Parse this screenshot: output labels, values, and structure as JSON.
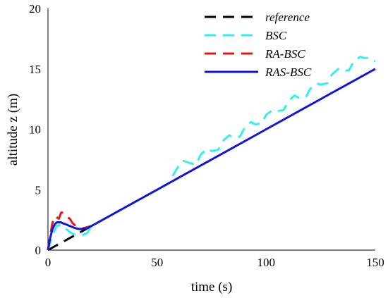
{
  "chart_data": {
    "type": "line",
    "xlabel": "time (s)",
    "ylabel": "altitude z (m)",
    "xlim": [
      0,
      150
    ],
    "ylim": [
      0,
      20
    ],
    "xticks": [
      "0",
      "50",
      "100",
      "150"
    ],
    "yticks": [
      "0",
      "5",
      "10",
      "15",
      "20"
    ],
    "grid": false,
    "legend_position": "top-right",
    "series": [
      {
        "name": "reference",
        "color": "#000000",
        "style": "dashed",
        "x": [
          0,
          20
        ],
        "y": [
          0,
          2
        ]
      },
      {
        "name": "BSC",
        "color": "#33f0f0",
        "style": "dashed",
        "x": [
          0,
          2,
          4,
          6,
          8,
          10,
          12,
          15,
          18,
          20,
          25,
          30,
          40,
          50,
          55,
          58,
          60,
          62,
          65,
          68,
          70,
          73,
          75,
          78,
          80,
          83,
          85,
          88,
          90,
          93,
          95,
          98,
          100,
          103,
          105,
          108,
          110,
          113,
          115,
          118,
          120,
          123,
          125,
          128,
          130,
          133,
          135,
          138,
          140,
          143,
          145,
          148,
          150
        ],
        "y": [
          0,
          1.2,
          2.0,
          2.1,
          1.8,
          1.5,
          1.3,
          1.2,
          1.4,
          2.0,
          2.5,
          3.0,
          4.0,
          5.0,
          5.5,
          6.4,
          7.0,
          7.4,
          7.2,
          7.1,
          7.9,
          8.4,
          8.2,
          8.3,
          9.0,
          9.5,
          9.3,
          9.4,
          10.1,
          10.6,
          10.4,
          10.5,
          11.2,
          11.6,
          11.5,
          11.6,
          12.3,
          12.8,
          12.6,
          12.6,
          13.3,
          13.8,
          13.7,
          13.8,
          14.5,
          15.0,
          14.8,
          14.9,
          15.6,
          16.0,
          15.9,
          15.9,
          15.6
        ]
      },
      {
        "name": "RA-BSC",
        "color": "#e01818",
        "style": "dashed",
        "x": [
          0,
          1,
          2,
          3,
          4,
          5,
          6,
          7,
          8,
          9,
          10,
          11,
          12,
          14,
          16,
          18,
          20
        ],
        "y": [
          0,
          1.2,
          2.2,
          2.8,
          2.7,
          2.6,
          3.1,
          3.1,
          2.9,
          2.7,
          2.6,
          2.3,
          2.1,
          1.9,
          1.8,
          1.9,
          2.0
        ]
      },
      {
        "name": "RAS-BSC",
        "color": "#1414d4",
        "style": "solid",
        "x": [
          0,
          1,
          2,
          3,
          4,
          5,
          6,
          7,
          8,
          10,
          12,
          14,
          16,
          18,
          20,
          30,
          40,
          50,
          60,
          70,
          80,
          90,
          100,
          110,
          120,
          130,
          140,
          150
        ],
        "y": [
          0,
          1.0,
          1.7,
          2.1,
          2.3,
          2.3,
          2.3,
          2.2,
          2.15,
          2.0,
          1.85,
          1.75,
          1.75,
          1.8,
          2.0,
          3.0,
          4.0,
          5.0,
          6.0,
          7.0,
          8.0,
          9.0,
          10.0,
          11.0,
          12.0,
          13.0,
          14.0,
          15.0
        ]
      }
    ]
  }
}
